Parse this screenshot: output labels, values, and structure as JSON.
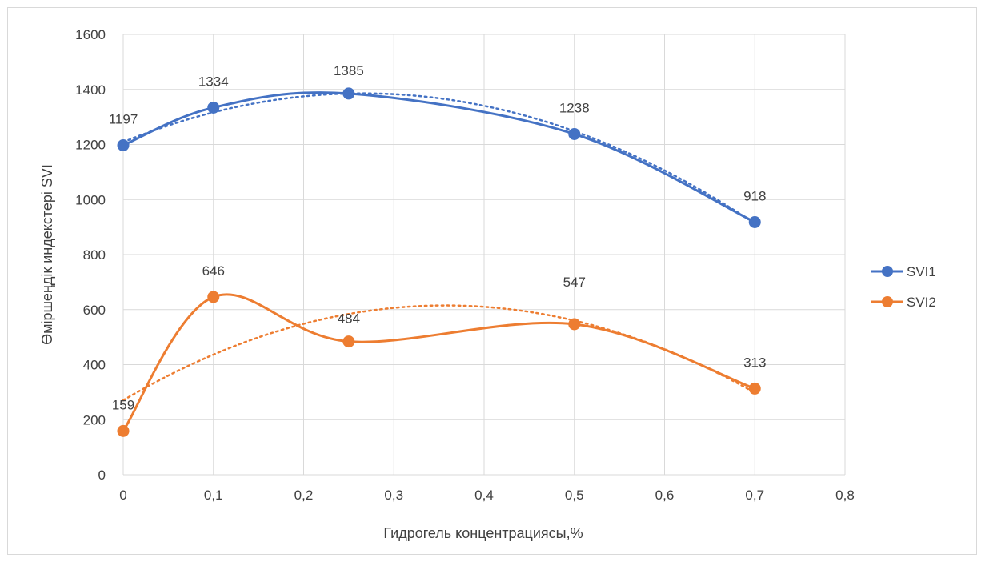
{
  "chart_data": {
    "type": "line",
    "title": "",
    "xlabel": "Гидрогель концентрациясы,%",
    "ylabel": "Өміршеңдік индекстері SVI",
    "xlim": [
      0,
      0.8
    ],
    "ylim": [
      0,
      1600
    ],
    "x_ticks": [
      0,
      0.1,
      0.2,
      0.3,
      0.4,
      0.5,
      0.6,
      0.7,
      0.8
    ],
    "x_tick_labels": [
      "0",
      "0,1",
      "0,2",
      "0,3",
      "0,4",
      "0,5",
      "0,6",
      "0,7",
      "0,8"
    ],
    "y_ticks": [
      0,
      200,
      400,
      600,
      800,
      1000,
      1200,
      1400,
      1600
    ],
    "y_tick_labels": [
      "0",
      "200",
      "400",
      "600",
      "800",
      "1000",
      "1200",
      "1400",
      "1600"
    ],
    "grid": true,
    "legend_position": "right",
    "smoothed": true,
    "trendline": "dotted polynomial",
    "x": [
      0,
      0.1,
      0.25,
      0.5,
      0.7
    ],
    "series": [
      {
        "name": "SVI1",
        "color": "#4472c4",
        "values": [
          1197,
          1334,
          1385,
          1238,
          918
        ],
        "labels": [
          "1197",
          "1334",
          "1385",
          "1238",
          "918"
        ]
      },
      {
        "name": "SVI2",
        "color": "#ed7d31",
        "values": [
          159,
          646,
          484,
          547,
          313
        ],
        "labels": [
          "159",
          "646",
          "484",
          "547",
          "313"
        ]
      }
    ]
  }
}
